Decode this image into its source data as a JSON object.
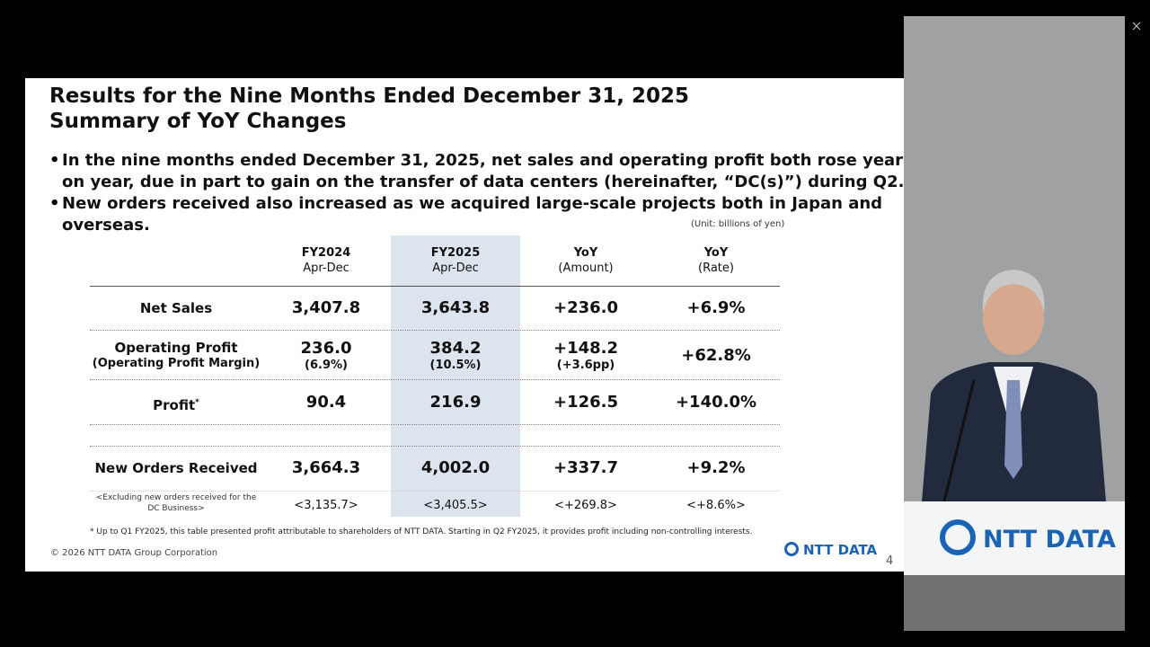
{
  "slide": {
    "title": [
      "Results for the Nine Months Ended December 31, 2025",
      "Summary of YoY Changes"
    ],
    "bullets": [
      [
        "In the nine months ended December 31, 2025, net sales and operating profit both rose year",
        "on year, due in part to gain on the transfer of data centers (hereinafter, “DC(s)”) during Q2."
      ],
      [
        "New orders received also increased as we acquired large-scale projects both in Japan and",
        "overseas."
      ]
    ],
    "unit": "(Unit: billions of yen)",
    "table": {
      "header": [
        [
          "FY2024",
          "Apr-Dec"
        ],
        [
          "FY2025",
          "Apr-Dec"
        ],
        [
          "YoY",
          "(Amount)"
        ],
        [
          "YoY",
          "(Rate)"
        ]
      ],
      "rows": [
        {
          "label": [
            "Net Sales"
          ],
          "cells": [
            [
              "3,407.8"
            ],
            [
              "3,643.8"
            ],
            [
              "+236.0"
            ],
            [
              "+6.9%"
            ]
          ]
        },
        {
          "label": [
            "Operating Profit",
            "(Operating Profit Margin)"
          ],
          "cells": [
            [
              "236.0",
              "(6.9%)"
            ],
            [
              "384.2",
              "(10.5%)"
            ],
            [
              "+148.2",
              "(+3.6pp)"
            ],
            [
              "+62.8%"
            ]
          ]
        },
        {
          "label": [
            "Profit"
          ],
          "label_mark": "*",
          "cells": [
            [
              "90.4"
            ],
            [
              "216.9"
            ],
            [
              "+126.5"
            ],
            [
              "+140.0%"
            ]
          ]
        },
        {
          "label": [
            "New Orders Received"
          ],
          "cells": [
            [
              "3,664.3"
            ],
            [
              "4,002.0"
            ],
            [
              "+337.7"
            ],
            [
              "+9.2%"
            ]
          ]
        },
        {
          "label": [
            "<Excluding new orders received for the",
            "DC Business>"
          ],
          "cells": [
            [
              "<3,135.7>"
            ],
            [
              "<3,405.5>"
            ],
            [
              "<+269.8>"
            ],
            [
              "<+8.6%>"
            ]
          ]
        }
      ]
    },
    "footnote": "* Up to Q1 FY2025, this table presented profit attributable to shareholders of NTT DATA. Starting in Q2 FY2025, it provides profit including non-controlling interests.",
    "copyright": "© 2026 NTT DATA Group Corporation",
    "logo": "NTT DATA",
    "page_number": "4"
  },
  "podium_logo": "NTT DATA"
}
